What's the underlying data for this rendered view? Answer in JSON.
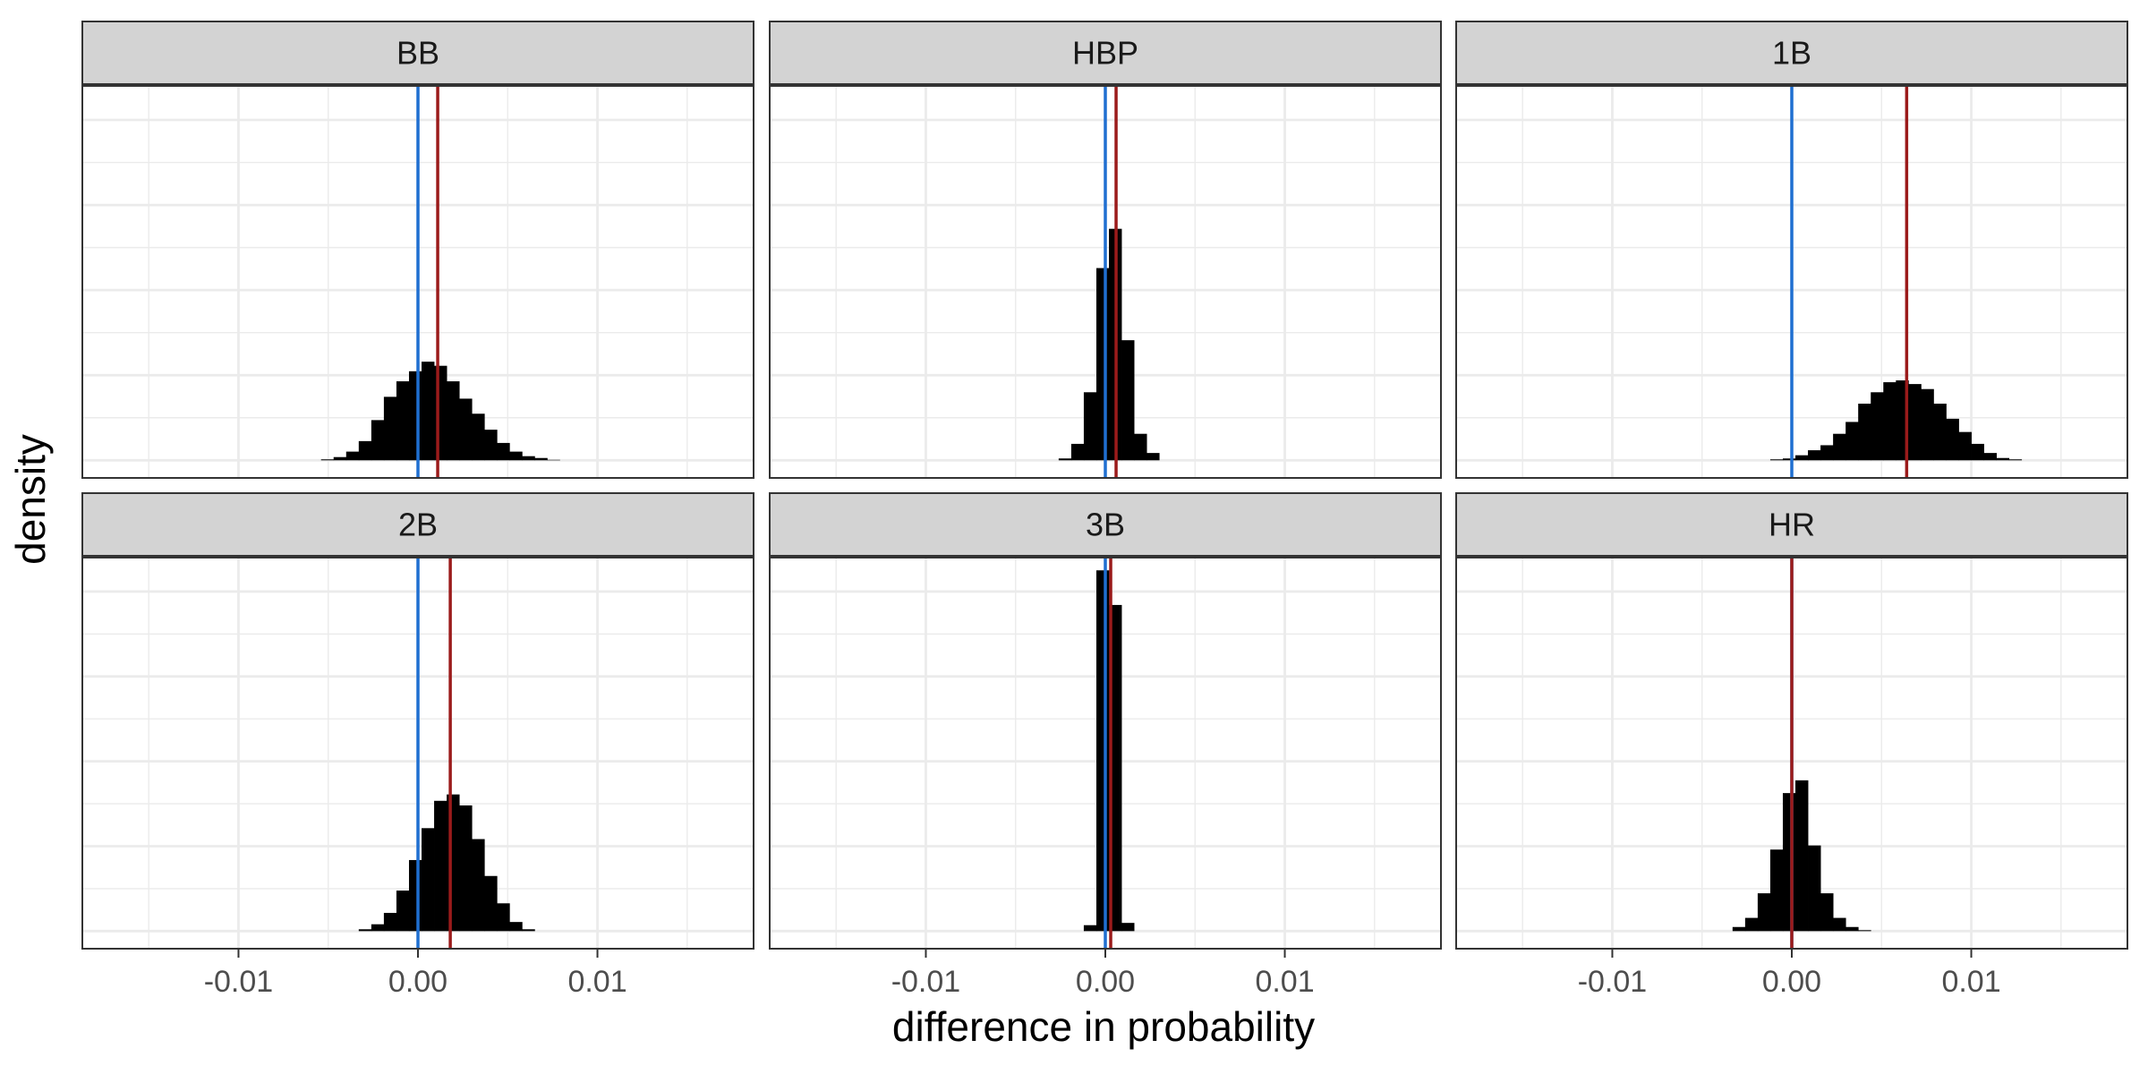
{
  "chart_data": {
    "type": "bar",
    "layout": "facet-grid",
    "xlabel": "difference in probability",
    "ylabel": "density",
    "xlim": [
      -0.0187,
      0.0187
    ],
    "x_ticks": [
      -0.01,
      0.0,
      0.01
    ],
    "x_tick_labels": [
      "-0.01",
      "0.00",
      "0.01"
    ],
    "grid": true,
    "colors": {
      "bars": "#000000",
      "zero_line": "#1f6fd1",
      "mean_line": "#9b1b1b",
      "strip_fill": "#d3d3d3",
      "panel_border": "#333333",
      "grid": "#ebebeb"
    },
    "facets": [
      {
        "label": "BB",
        "ymax": 0.82,
        "zero_line": 0.0,
        "mean_line": 0.0011,
        "bin_width": 0.0007,
        "bins": [
          {
            "x": -0.00505,
            "y": 0.002
          },
          {
            "x": -0.00435,
            "y": 0.007
          },
          {
            "x": -0.00365,
            "y": 0.019
          },
          {
            "x": -0.00295,
            "y": 0.042
          },
          {
            "x": -0.00225,
            "y": 0.088
          },
          {
            "x": -0.00155,
            "y": 0.139
          },
          {
            "x": -0.00085,
            "y": 0.173
          },
          {
            "x": -0.00015,
            "y": 0.195
          },
          {
            "x": 0.00055,
            "y": 0.216
          },
          {
            "x": 0.00125,
            "y": 0.207
          },
          {
            "x": 0.00195,
            "y": 0.173
          },
          {
            "x": 0.00265,
            "y": 0.135
          },
          {
            "x": 0.00335,
            "y": 0.102
          },
          {
            "x": 0.00405,
            "y": 0.067
          },
          {
            "x": 0.00475,
            "y": 0.038
          },
          {
            "x": 0.00545,
            "y": 0.019
          },
          {
            "x": 0.00615,
            "y": 0.009
          },
          {
            "x": 0.00685,
            "y": 0.005
          },
          {
            "x": 0.00755,
            "y": 0.001
          }
        ]
      },
      {
        "label": "HBP",
        "ymax": 0.82,
        "zero_line": 0.0,
        "mean_line": 0.0006,
        "bin_width": 0.0007,
        "bins": [
          {
            "x": -0.00225,
            "y": 0.004
          },
          {
            "x": -0.00155,
            "y": 0.036
          },
          {
            "x": -0.00085,
            "y": 0.149
          },
          {
            "x": -0.00015,
            "y": 0.421
          },
          {
            "x": 0.00055,
            "y": 0.507
          },
          {
            "x": 0.00125,
            "y": 0.263
          },
          {
            "x": 0.00195,
            "y": 0.058
          },
          {
            "x": 0.00265,
            "y": 0.016
          }
        ]
      },
      {
        "label": "1B",
        "ymax": 0.82,
        "zero_line": 0.0,
        "mean_line": 0.0064,
        "bin_width": 0.0007,
        "bins": [
          {
            "x": -0.00085,
            "y": 0.002
          },
          {
            "x": -0.00015,
            "y": 0.004
          },
          {
            "x": 0.00055,
            "y": 0.011
          },
          {
            "x": 0.00125,
            "y": 0.022
          },
          {
            "x": 0.00195,
            "y": 0.033
          },
          {
            "x": 0.00265,
            "y": 0.058
          },
          {
            "x": 0.00335,
            "y": 0.084
          },
          {
            "x": 0.00405,
            "y": 0.124
          },
          {
            "x": 0.00475,
            "y": 0.149
          },
          {
            "x": 0.00545,
            "y": 0.171
          },
          {
            "x": 0.00615,
            "y": 0.175
          },
          {
            "x": 0.00685,
            "y": 0.167
          },
          {
            "x": 0.00755,
            "y": 0.156
          },
          {
            "x": 0.00825,
            "y": 0.124
          },
          {
            "x": 0.00895,
            "y": 0.091
          },
          {
            "x": 0.00965,
            "y": 0.062
          },
          {
            "x": 0.01035,
            "y": 0.036
          },
          {
            "x": 0.01105,
            "y": 0.016
          },
          {
            "x": 0.01175,
            "y": 0.005
          },
          {
            "x": 0.01245,
            "y": 0.002
          }
        ]
      },
      {
        "label": "2B",
        "ymax": 0.82,
        "zero_line": 0.0,
        "mean_line": 0.0018,
        "bin_width": 0.0007,
        "bins": [
          {
            "x": -0.00295,
            "y": 0.004
          },
          {
            "x": -0.00225,
            "y": 0.015
          },
          {
            "x": -0.00155,
            "y": 0.04
          },
          {
            "x": -0.00085,
            "y": 0.089
          },
          {
            "x": -0.00015,
            "y": 0.156
          },
          {
            "x": 0.00055,
            "y": 0.226
          },
          {
            "x": 0.00125,
            "y": 0.286
          },
          {
            "x": 0.00195,
            "y": 0.3
          },
          {
            "x": 0.00265,
            "y": 0.276
          },
          {
            "x": 0.00335,
            "y": 0.202
          },
          {
            "x": 0.00405,
            "y": 0.121
          },
          {
            "x": 0.00475,
            "y": 0.061
          },
          {
            "x": 0.00545,
            "y": 0.02
          },
          {
            "x": 0.00615,
            "y": 0.004
          }
        ]
      },
      {
        "label": "3B",
        "ymax": 0.82,
        "zero_line": 0.0,
        "mean_line": 0.0003,
        "bin_width": 0.0007,
        "bins": [
          {
            "x": -0.00085,
            "y": 0.013
          },
          {
            "x": -0.00015,
            "y": 0.792
          },
          {
            "x": 0.00055,
            "y": 0.716
          },
          {
            "x": 0.00125,
            "y": 0.018
          }
        ]
      },
      {
        "label": "HR",
        "ymax": 0.82,
        "zero_line": 0.0,
        "mean_line": 0.0,
        "bin_width": 0.0007,
        "bins": [
          {
            "x": -0.00295,
            "y": 0.009
          },
          {
            "x": -0.00225,
            "y": 0.029
          },
          {
            "x": -0.00155,
            "y": 0.083
          },
          {
            "x": -0.00085,
            "y": 0.179
          },
          {
            "x": -0.00015,
            "y": 0.303
          },
          {
            "x": 0.00055,
            "y": 0.331
          },
          {
            "x": 0.00125,
            "y": 0.188
          },
          {
            "x": 0.00195,
            "y": 0.083
          },
          {
            "x": 0.00265,
            "y": 0.029
          },
          {
            "x": 0.00335,
            "y": 0.009
          },
          {
            "x": 0.00405,
            "y": 0.002
          }
        ]
      }
    ]
  }
}
